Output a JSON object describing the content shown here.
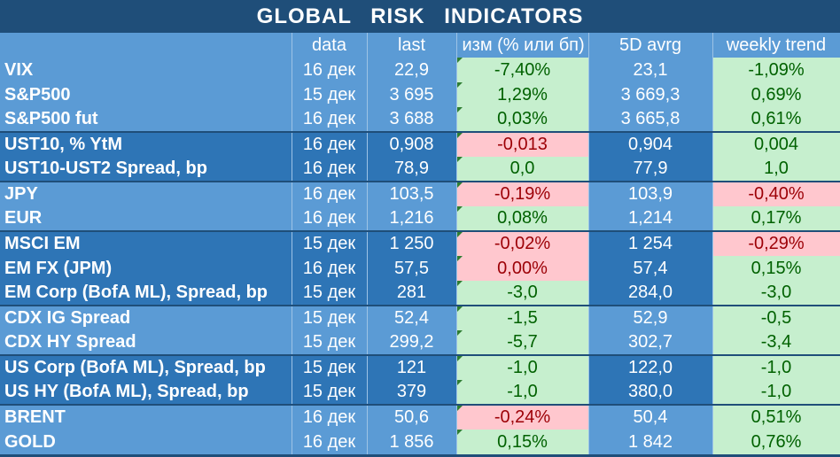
{
  "title": "GLOBAL   RISK   INDICATORS",
  "headers": [
    "",
    "data",
    "last",
    "изм (% или бп)",
    "5D avrg",
    "weekly trend"
  ],
  "rows": [
    {
      "name": "VIX",
      "date": "16 дек",
      "last": "22,9",
      "chg": "-7,40%",
      "chg_sign": "pos",
      "avg": "23,1",
      "trend": "-1,09%",
      "trend_sign": "pos",
      "group": "light",
      "sep": false
    },
    {
      "name": "S&P500",
      "date": "15 дек",
      "last": "3 695",
      "chg": "1,29%",
      "chg_sign": "pos",
      "avg": "3 669,3",
      "trend": "0,69%",
      "trend_sign": "pos",
      "group": "light",
      "sep": false
    },
    {
      "name": "S&P500 fut",
      "date": "16 дек",
      "last": "3 688",
      "chg": "0,03%",
      "chg_sign": "pos",
      "avg": "3 665,8",
      "trend": "0,61%",
      "trend_sign": "pos",
      "group": "light",
      "sep": false
    },
    {
      "name": "UST10, % YtM",
      "date": "16 дек",
      "last": "0,908",
      "chg": "-0,013",
      "chg_sign": "neg",
      "avg": "0,904",
      "trend": "0,004",
      "trend_sign": "pos",
      "group": "dark",
      "sep": true
    },
    {
      "name": "UST10-UST2 Spread, bp",
      "date": "16 дек",
      "last": "78,9",
      "chg": "0,0",
      "chg_sign": "pos",
      "avg": "77,9",
      "trend": "1,0",
      "trend_sign": "pos",
      "group": "dark",
      "sep": false
    },
    {
      "name": "JPY",
      "date": "16 дек",
      "last": "103,5",
      "chg": "-0,19%",
      "chg_sign": "neg",
      "avg": "103,9",
      "trend": "-0,40%",
      "trend_sign": "neg",
      "group": "light",
      "sep": true
    },
    {
      "name": "EUR",
      "date": "16 дек",
      "last": "1,216",
      "chg": "0,08%",
      "chg_sign": "pos",
      "avg": "1,214",
      "trend": "0,17%",
      "trend_sign": "pos",
      "group": "light",
      "sep": false
    },
    {
      "name": "MSCI EM",
      "date": "15 дек",
      "last": "1 250",
      "chg": "-0,02%",
      "chg_sign": "neg",
      "avg": "1 254",
      "trend": "-0,29%",
      "trend_sign": "neg",
      "group": "dark",
      "sep": true
    },
    {
      "name": "EM FX (JPM)",
      "date": "16 дек",
      "last": "57,5",
      "chg": "0,00%",
      "chg_sign": "neg",
      "avg": "57,4",
      "trend": "0,15%",
      "trend_sign": "pos",
      "group": "dark",
      "sep": false
    },
    {
      "name": "EM Corp (BofA ML), Spread, bp",
      "date": "15 дек",
      "last": "281",
      "chg": "-3,0",
      "chg_sign": "pos",
      "avg": "284,0",
      "trend": "-3,0",
      "trend_sign": "pos",
      "group": "dark",
      "sep": false
    },
    {
      "name": "CDX IG Spread",
      "date": "15 дек",
      "last": "52,4",
      "chg": "-1,5",
      "chg_sign": "pos",
      "avg": "52,9",
      "trend": "-0,5",
      "trend_sign": "pos",
      "group": "light",
      "sep": true
    },
    {
      "name": "CDX HY Spread",
      "date": "15 дек",
      "last": "299,2",
      "chg": "-5,7",
      "chg_sign": "pos",
      "avg": "302,7",
      "trend": "-3,4",
      "trend_sign": "pos",
      "group": "light",
      "sep": false
    },
    {
      "name": "US Corp (BofA ML), Spread, bp",
      "date": "15 дек",
      "last": "121",
      "chg": "-1,0",
      "chg_sign": "pos",
      "avg": "122,0",
      "trend": "-1,0",
      "trend_sign": "pos",
      "group": "dark",
      "sep": true
    },
    {
      "name": "US HY (BofA ML), Spread, bp",
      "date": "15 дек",
      "last": "379",
      "chg": "-1,0",
      "chg_sign": "pos",
      "avg": "380,0",
      "trend": "-1,0",
      "trend_sign": "pos",
      "group": "dark",
      "sep": false
    },
    {
      "name": "BRENT",
      "date": "16 дек",
      "last": "50,6",
      "chg": "-0,24%",
      "chg_sign": "neg",
      "avg": "50,4",
      "trend": "0,51%",
      "trend_sign": "pos",
      "group": "light",
      "sep": true
    },
    {
      "name": "GOLD",
      "date": "16 дек",
      "last": "1 856",
      "chg": "0,15%",
      "chg_sign": "pos",
      "avg": "1 842",
      "trend": "0,76%",
      "trend_sign": "pos",
      "group": "light",
      "sep": false
    }
  ],
  "colors": {
    "pos_bg": "#c6efce",
    "pos_fg": "#006100",
    "neg_bg": "#ffc7ce",
    "neg_fg": "#9c0006",
    "light": "#5b9bd5",
    "dark": "#2e75b6",
    "title_bg": "#1f4e79"
  }
}
